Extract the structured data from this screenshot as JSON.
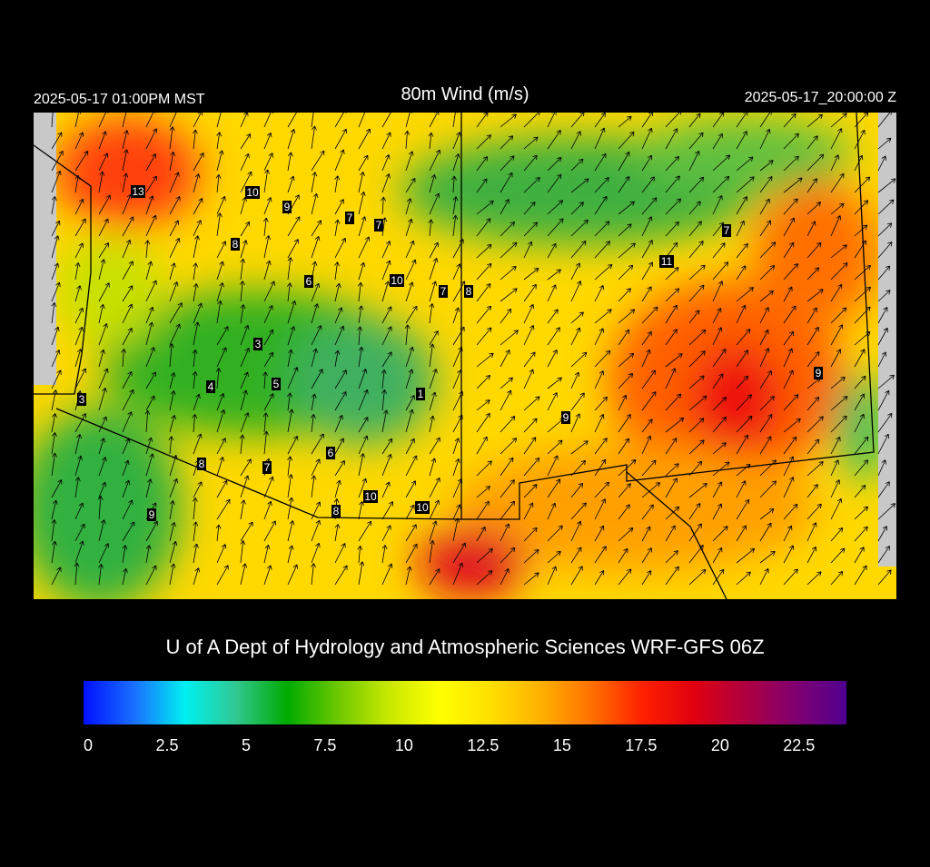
{
  "header": {
    "left": "2025-05-17 01:00PM MST",
    "title": "80m Wind (m/s)",
    "right": "2025-05-17_20:00:00 Z"
  },
  "stations": [
    13,
    10,
    9,
    7,
    7,
    8,
    6,
    10,
    7,
    8,
    11,
    7,
    3,
    4,
    5,
    1,
    3,
    9,
    9,
    6,
    8,
    7,
    10,
    8,
    10,
    9
  ],
  "credit": "U of A Dept of Hydrology and Atmospheric Sciences WRF-GFS 06Z",
  "colorbar": {
    "range": [
      0,
      24
    ],
    "ticks": [
      0,
      2.5,
      5,
      7.5,
      10,
      12.5,
      15,
      17.5,
      20,
      22.5
    ],
    "colors": [
      "#0010ff",
      "#1a70ff",
      "#00f0f0",
      "#30c890",
      "#00aa00",
      "#6cc800",
      "#c8e800",
      "#ffff00",
      "#ffe000",
      "#ffb000",
      "#ff7000",
      "#ff2000",
      "#e00010",
      "#b00040",
      "#800070",
      "#500090"
    ]
  }
}
